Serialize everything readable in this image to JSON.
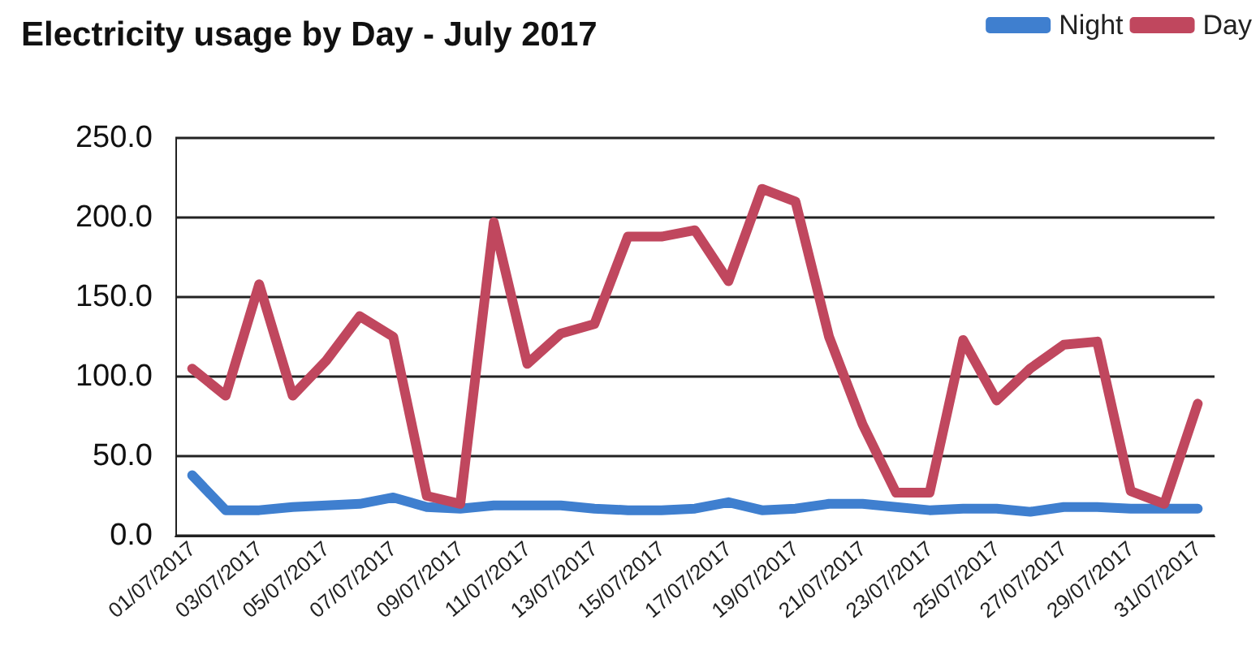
{
  "chart_data": {
    "type": "line",
    "title": "Electricity usage by Day - July 2017",
    "categories": [
      "01/07/2017",
      null,
      "03/07/2017",
      null,
      "05/07/2017",
      null,
      "07/07/2017",
      null,
      "09/07/2017",
      null,
      "11/07/2017",
      null,
      "13/07/2017",
      null,
      "15/07/2017",
      null,
      "17/07/2017",
      null,
      "19/07/2017",
      null,
      "21/07/2017",
      null,
      "23/07/2017",
      null,
      "25/07/2017",
      null,
      "27/07/2017",
      null,
      "29/07/2017",
      null,
      "31/07/2017"
    ],
    "series": [
      {
        "name": "Night",
        "color": "#3f7fcf",
        "values": [
          38,
          16,
          16,
          18,
          19,
          20,
          24,
          18,
          17,
          19,
          19,
          19,
          17,
          16,
          16,
          17,
          21,
          16,
          17,
          20,
          20,
          18,
          16,
          17,
          17,
          15,
          18,
          18,
          17,
          17,
          17
        ]
      },
      {
        "name": "Day",
        "color": "#c0475e",
        "values": [
          105,
          88,
          158,
          88,
          110,
          138,
          125,
          25,
          20,
          197,
          108,
          127,
          133,
          188,
          188,
          192,
          160,
          218,
          210,
          125,
          70,
          27,
          27,
          123,
          85,
          105,
          120,
          122,
          28,
          20,
          83
        ]
      }
    ],
    "ylim": [
      0,
      250
    ],
    "yticks": [
      {
        "value": 0,
        "label": "0.0"
      },
      {
        "value": 50,
        "label": "50.0"
      },
      {
        "value": 100,
        "label": "100.0"
      },
      {
        "value": 150,
        "label": "150.0"
      },
      {
        "value": 200,
        "label": "200.0"
      },
      {
        "value": 250,
        "label": "250.0"
      }
    ],
    "grid": "y",
    "legend": "top right",
    "marker": "none",
    "line_style": "solid"
  }
}
